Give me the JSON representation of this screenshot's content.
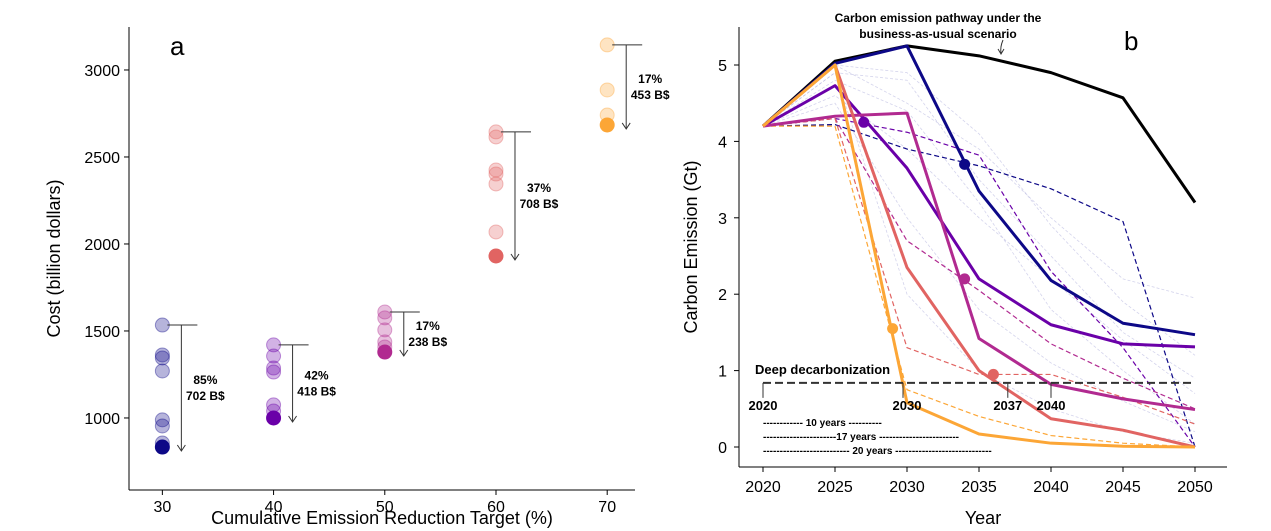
{
  "chart_data": [
    {
      "panel_label": "a",
      "type": "scatter",
      "xlabel": "Cumulative Emission Reduction Target (%)",
      "ylabel": "Cost (billion dollars)",
      "xticks": [
        30,
        40,
        50,
        60,
        70
      ],
      "yticks": [
        1000,
        1500,
        2000,
        2500,
        3000
      ],
      "xlim": [
        27,
        72.5
      ],
      "ylim": [
        586,
        3247
      ],
      "groups": [
        {
          "x": 30,
          "color": "#0d0887",
          "values": [
            1534,
            1362,
            1345,
            1270,
            989,
            954,
            856,
            833
          ],
          "pct": "85%",
          "cost": "702 B$"
        },
        {
          "x": 40,
          "color": "#6a00a8",
          "values": [
            1420,
            1356,
            1287,
            1264,
            1075,
            1040,
            1000
          ],
          "pct": "42%",
          "cost": "418 B$"
        },
        {
          "x": 50,
          "color": "#b12a90",
          "values": [
            1609,
            1575,
            1506,
            1437,
            1408,
            1379
          ],
          "pct": "17%",
          "cost": "238 B$"
        },
        {
          "x": 60,
          "color": "#e16462",
          "values": [
            2644,
            2615,
            2425,
            2402,
            2345,
            2069,
            1931
          ],
          "pct": "37%",
          "cost": "708 B$"
        },
        {
          "x": 70,
          "color": "#fca636",
          "values": [
            3144,
            2885,
            2741,
            2684
          ],
          "pct": "17%",
          "cost": "453 B$"
        }
      ]
    },
    {
      "panel_label": "b",
      "type": "line",
      "xlabel": "Year",
      "ylabel": "Carbon Emission (Gt)",
      "x": [
        2020,
        2025,
        2030,
        2035,
        2040,
        2045,
        2050
      ],
      "yticks": [
        0,
        1,
        2,
        3,
        4,
        5
      ],
      "xlim": [
        2018,
        2052
      ],
      "ylim": [
        -0.25,
        5.5
      ],
      "series": [
        {
          "color": "#000000",
          "style": "solid",
          "values": [
            4.2,
            5.05,
            5.25,
            5.12,
            4.9,
            4.57,
            3.2
          ]
        },
        {
          "color": "#0d0887",
          "style": "solid",
          "values": [
            4.2,
            5.02,
            5.25,
            3.35,
            2.18,
            1.62,
            1.47
          ]
        },
        {
          "color": "#6a00a8",
          "style": "solid",
          "values": [
            4.2,
            4.73,
            3.65,
            2.2,
            1.6,
            1.35,
            1.31
          ]
        },
        {
          "color": "#b12a90",
          "style": "solid",
          "values": [
            4.2,
            4.33,
            4.37,
            1.42,
            0.82,
            0.63,
            0.49
          ]
        },
        {
          "color": "#e16462",
          "style": "solid",
          "values": [
            4.2,
            5.0,
            2.35,
            1.0,
            0.37,
            0.22,
            0
          ]
        },
        {
          "color": "#fca636",
          "style": "solid",
          "values": [
            4.2,
            5.0,
            0.58,
            0.17,
            0.05,
            0.01,
            0
          ]
        },
        {
          "color": "#0d0887",
          "style": "dashed",
          "values": [
            4.2,
            4.22,
            3.9,
            3.68,
            3.38,
            2.95,
            0
          ]
        },
        {
          "color": "#6a00a8",
          "style": "dashed",
          "values": [
            4.2,
            4.3,
            4.12,
            3.82,
            2.3,
            1.3,
            0
          ]
        },
        {
          "color": "#b12a90",
          "style": "dashed",
          "values": [
            4.2,
            4.3,
            2.7,
            2.05,
            1.35,
            0.9,
            0.5
          ]
        },
        {
          "color": "#e16462",
          "style": "dashed",
          "values": [
            4.2,
            4.3,
            1.3,
            0.95,
            0.95,
            0.65,
            0.3
          ]
        },
        {
          "color": "#fca636",
          "style": "dashed",
          "values": [
            4.2,
            4.2,
            0.75,
            0.4,
            0.15,
            0.05,
            0
          ]
        }
      ],
      "faint_series": [
        [
          4.2,
          5.0,
          4.5,
          3.9,
          3.0,
          2.2,
          1.95
        ],
        [
          4.2,
          4.9,
          4.8,
          3.5,
          2.5,
          1.5,
          0.9
        ],
        [
          4.2,
          4.6,
          3.9,
          3.0,
          2.2,
          1.4,
          0.7
        ],
        [
          4.2,
          4.8,
          4.4,
          3.2,
          1.8,
          1.0,
          0.3
        ],
        [
          4.2,
          4.5,
          3.0,
          1.8,
          1.1,
          0.6,
          0.2
        ],
        [
          4.2,
          4.9,
          2.0,
          1.0,
          0.5,
          0.2,
          0.05
        ],
        [
          4.2,
          5.0,
          4.9,
          4.1,
          2.9,
          1.9,
          1.2
        ]
      ],
      "markers": [
        {
          "x": 2027,
          "y": 4.25,
          "color": "#6a00a8"
        },
        {
          "x": 2034,
          "y": 3.7,
          "color": "#0d0887"
        },
        {
          "x": 2034,
          "y": 2.2,
          "color": "#b12a90"
        },
        {
          "x": 2036,
          "y": 0.95,
          "color": "#e16462"
        },
        {
          "x": 2029,
          "y": 1.55,
          "color": "#fca636"
        }
      ],
      "threshold": {
        "y": 0.84,
        "label": "Deep decarbonization"
      },
      "year_marks": [
        "2020",
        "2030",
        "2037",
        "2040"
      ],
      "spans": [
        "------------ 10 years ----------",
        "----------------------17 years ------------------------",
        "-------------------------- 20 years -----------------------------"
      ],
      "annotation_lines": [
        "Carbon emission pathway under the",
        "business-as-usual scenario"
      ]
    }
  ]
}
